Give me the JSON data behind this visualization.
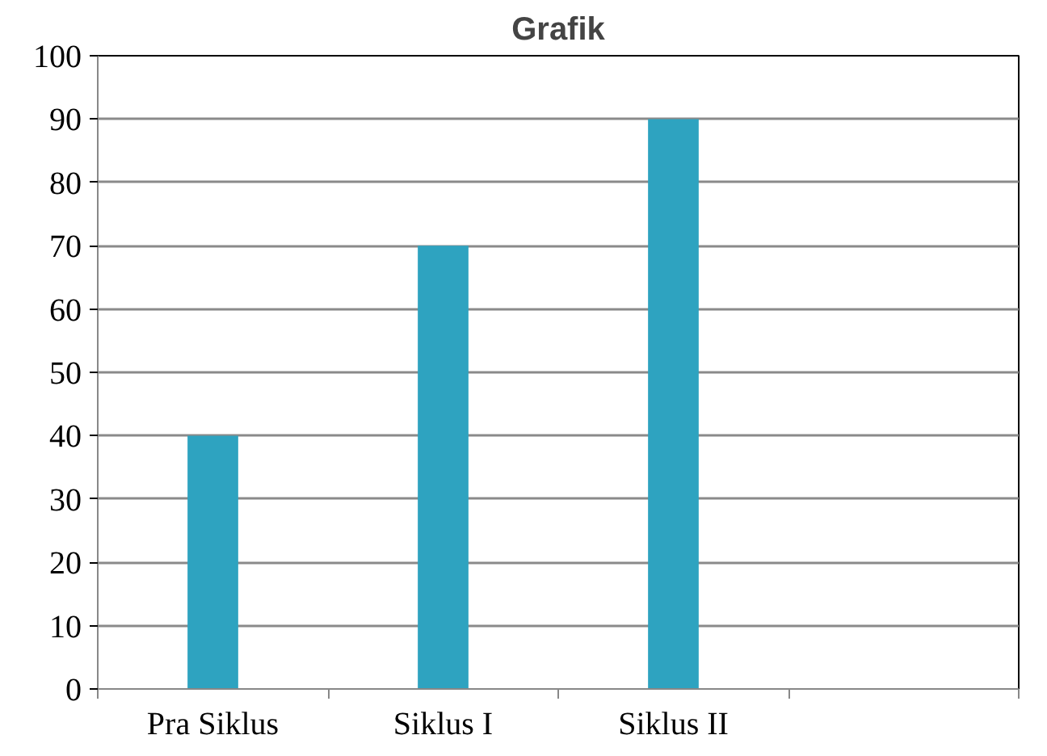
{
  "chart_data": {
    "type": "bar",
    "title": "Grafik",
    "categories": [
      "Pra Siklus",
      "Siklus I",
      "Siklus II",
      null
    ],
    "values": [
      40,
      70,
      90,
      null
    ],
    "color": "#2ea3c0",
    "ylim": [
      0,
      100
    ],
    "yticks": [
      0,
      10,
      20,
      30,
      40,
      50,
      60,
      70,
      80,
      90,
      100
    ],
    "grid": "y"
  }
}
